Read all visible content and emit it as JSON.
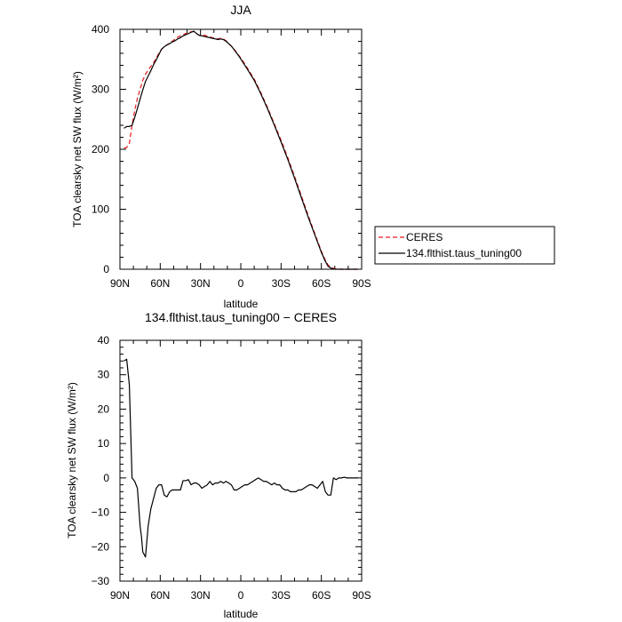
{
  "chart_data": [
    {
      "type": "line",
      "title": "JJA",
      "xlabel": "latitude",
      "ylabel": "TOA clearsky net SW flux (W/m²)",
      "xlim": [
        90,
        -90
      ],
      "ylim": [
        0,
        400
      ],
      "xticks": [
        90,
        60,
        30,
        0,
        -30,
        -60,
        -90
      ],
      "xtick_labels": [
        "90N",
        "60N",
        "30N",
        "0",
        "30S",
        "60S",
        "90S"
      ],
      "yticks": [
        0,
        100,
        200,
        300,
        400
      ],
      "ytick_labels": [
        "0",
        "100",
        "200",
        "300",
        "400"
      ],
      "grid": false,
      "legend_position": "right-outside",
      "series": [
        {
          "name": "CERES",
          "color": "#e31a1c",
          "dash": "dashed",
          "x": [
            87,
            85,
            83,
            81,
            79,
            77,
            75,
            73,
            71,
            69,
            67,
            65,
            63,
            61,
            59,
            57,
            55,
            53,
            51,
            49,
            47,
            45,
            43,
            41,
            39,
            37,
            35,
            33,
            31,
            29,
            27,
            25,
            23,
            21,
            19,
            17,
            15,
            13,
            11,
            9,
            7,
            5,
            3,
            1,
            -1,
            -5,
            -10,
            -15,
            -20,
            -25,
            -30,
            -35,
            -40,
            -45,
            -50,
            -55,
            -60,
            -63,
            -65,
            -67,
            -70,
            -75,
            -80,
            -85,
            -87
          ],
          "y": [
            202,
            203,
            210,
            240,
            265,
            285,
            300,
            315,
            325,
            332,
            338,
            344,
            352,
            360,
            367,
            371,
            374,
            377,
            380,
            384,
            387,
            389,
            391,
            393,
            395,
            396,
            396,
            393,
            390,
            390,
            390,
            389,
            387,
            386,
            385,
            384,
            385,
            384,
            381,
            376,
            372,
            367,
            361,
            355,
            349,
            335,
            317,
            294,
            269,
            242,
            215,
            186,
            155,
            123,
            91,
            60,
            30,
            15,
            7,
            3,
            1,
            0,
            0,
            0,
            0
          ]
        },
        {
          "name": "134.flthist.taus_tuning00",
          "color": "#000000",
          "dash": "solid",
          "x": [
            87,
            85,
            83,
            81,
            79,
            77,
            75,
            73,
            71,
            69,
            67,
            65,
            63,
            61,
            59,
            57,
            55,
            53,
            51,
            49,
            47,
            45,
            43,
            41,
            39,
            37,
            35,
            33,
            31,
            29,
            27,
            25,
            23,
            21,
            19,
            17,
            15,
            13,
            11,
            9,
            7,
            5,
            3,
            1,
            -1,
            -5,
            -10,
            -15,
            -20,
            -25,
            -30,
            -35,
            -40,
            -45,
            -50,
            -55,
            -60,
            -63,
            -65,
            -67,
            -70,
            -75,
            -80,
            -85,
            -87
          ],
          "y": [
            235,
            238,
            238,
            240,
            253,
            268,
            284,
            299,
            313,
            322,
            331,
            341,
            349,
            358,
            367,
            371,
            374,
            376,
            379,
            381,
            384,
            386,
            389,
            391,
            393,
            395,
            397,
            393,
            390,
            389,
            388,
            387,
            386,
            385,
            384,
            383,
            384,
            383,
            380,
            376,
            372,
            366,
            360,
            354,
            347,
            333,
            315,
            292,
            267,
            240,
            212,
            183,
            152,
            120,
            88,
            58,
            28,
            13,
            5,
            2,
            0,
            0,
            0,
            0,
            0
          ]
        }
      ],
      "legend": [
        "CERES",
        "134.flthist.taus_tuning00"
      ]
    },
    {
      "type": "line",
      "title": "134.flthist.taus_tuning00 − CERES",
      "xlabel": "latitude",
      "ylabel": "TOA clearsky net SW flux (W/m²)",
      "xlim": [
        90,
        -90
      ],
      "ylim": [
        -30,
        40
      ],
      "xticks": [
        90,
        60,
        30,
        0,
        -30,
        -60,
        -90
      ],
      "xtick_labels": [
        "90N",
        "60N",
        "30N",
        "0",
        "30S",
        "60S",
        "90S"
      ],
      "yticks": [
        -30,
        -20,
        -10,
        0,
        10,
        20,
        30,
        40
      ],
      "ytick_labels": [
        "−30",
        "−20",
        "−10",
        "0",
        "10",
        "20",
        "30",
        "40"
      ],
      "grid": false,
      "series": [
        {
          "color": "#000000",
          "dash": "solid",
          "x": [
            87,
            85,
            83,
            81,
            79,
            77,
            75,
            74,
            73,
            71,
            69,
            67,
            65,
            63,
            61,
            59,
            57,
            55,
            53,
            51,
            49,
            47,
            45,
            43,
            41,
            39,
            37,
            35,
            33,
            31,
            29,
            27,
            25,
            23,
            21,
            19,
            17,
            15,
            13,
            11,
            9,
            7,
            5,
            3,
            1,
            -1,
            -3,
            -5,
            -7,
            -9,
            -11,
            -13,
            -15,
            -17,
            -19,
            -21,
            -23,
            -25,
            -27,
            -29,
            -31,
            -33,
            -35,
            -37,
            -39,
            -41,
            -43,
            -45,
            -47,
            -49,
            -51,
            -53,
            -55,
            -57,
            -59,
            -61,
            -63,
            -65,
            -67,
            -69,
            -71,
            -73,
            -75,
            -77,
            -79,
            -81,
            -83,
            -85,
            -87
          ],
          "y": [
            34,
            34.5,
            27,
            0,
            -1,
            -3,
            -14,
            -17,
            -21.5,
            -23,
            -14,
            -9,
            -6,
            -3,
            -2,
            -2,
            -5,
            -5.5,
            -4,
            -3.5,
            -3.5,
            -3.5,
            -3.5,
            -0.8,
            -0.8,
            -0.5,
            -2,
            -1.5,
            -1.5,
            -2,
            -3,
            -2.5,
            -2,
            -1,
            -2,
            -1.5,
            -1.5,
            -1,
            -1.5,
            -1,
            -1.5,
            -2,
            -3.5,
            -3.5,
            -3,
            -2.5,
            -2,
            -2,
            -1.5,
            -1,
            -0.5,
            0,
            -0.5,
            -1,
            -1,
            -1.5,
            -2,
            -1.5,
            -2,
            -2,
            -3,
            -3.5,
            -3.5,
            -4,
            -4,
            -4,
            -3.5,
            -3.5,
            -3,
            -2.5,
            -2,
            -2,
            -2.5,
            -3,
            -2,
            -1,
            -4,
            -5,
            -5,
            0,
            -0.5,
            0,
            0,
            0.2,
            0,
            0,
            0,
            0,
            0
          ]
        }
      ]
    }
  ]
}
